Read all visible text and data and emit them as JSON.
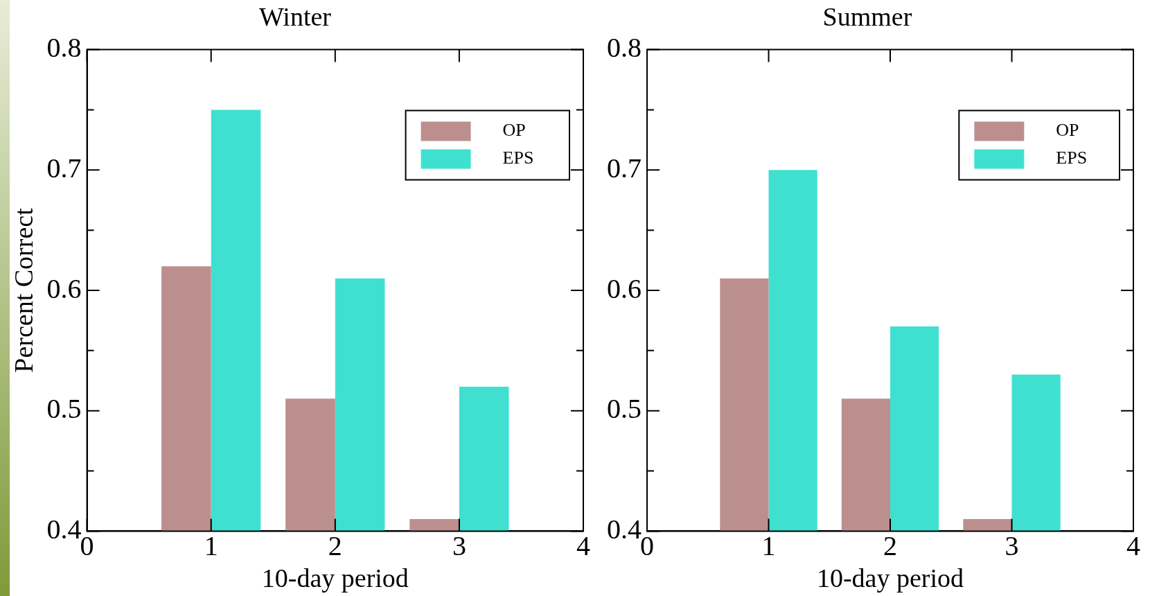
{
  "chart_data": [
    {
      "type": "bar",
      "title": "Winter",
      "xlabel": "10-day period",
      "ylabel": "Percent Correct",
      "x": [
        1,
        2,
        3
      ],
      "xlim": [
        0,
        4
      ],
      "xticks": [
        0,
        1,
        2,
        3,
        4
      ],
      "ylim": [
        0.4,
        0.8
      ],
      "yticks": [
        0.4,
        {
          "value": 0.45,
          "label": null
        },
        0.5,
        {
          "value": 0.55,
          "label": null
        },
        0.6,
        {
          "value": 0.65,
          "label": null
        },
        0.7,
        {
          "value": 0.75,
          "label": null
        },
        0.8
      ],
      "grid": false,
      "legend": "top right",
      "series": [
        {
          "name": "OP",
          "color": "#bc8f8f",
          "values": [
            0.62,
            0.51,
            0.41
          ]
        },
        {
          "name": "EPS",
          "color": "#40e0d0",
          "values": [
            0.75,
            0.61,
            0.52
          ]
        }
      ]
    },
    {
      "type": "bar",
      "title": "Summer",
      "xlabel": "10-day period",
      "x": [
        1,
        2,
        3
      ],
      "xlim": [
        0,
        4
      ],
      "xticks": [
        0,
        1,
        2,
        3,
        4
      ],
      "ylim": [
        0.4,
        0.8
      ],
      "yticks": [
        0.4,
        {
          "value": 0.45,
          "label": null
        },
        0.5,
        {
          "value": 0.55,
          "label": null
        },
        0.6,
        {
          "value": 0.65,
          "label": null
        },
        0.7,
        {
          "value": 0.75,
          "label": null
        },
        0.8
      ],
      "grid": false,
      "legend": "top right",
      "series": [
        {
          "name": "OP",
          "color": "#bc8f8f",
          "values": [
            0.61,
            0.51,
            0.41
          ]
        },
        {
          "name": "EPS",
          "color": "#40e0d0",
          "values": [
            0.7,
            0.57,
            0.53
          ]
        }
      ]
    }
  ]
}
